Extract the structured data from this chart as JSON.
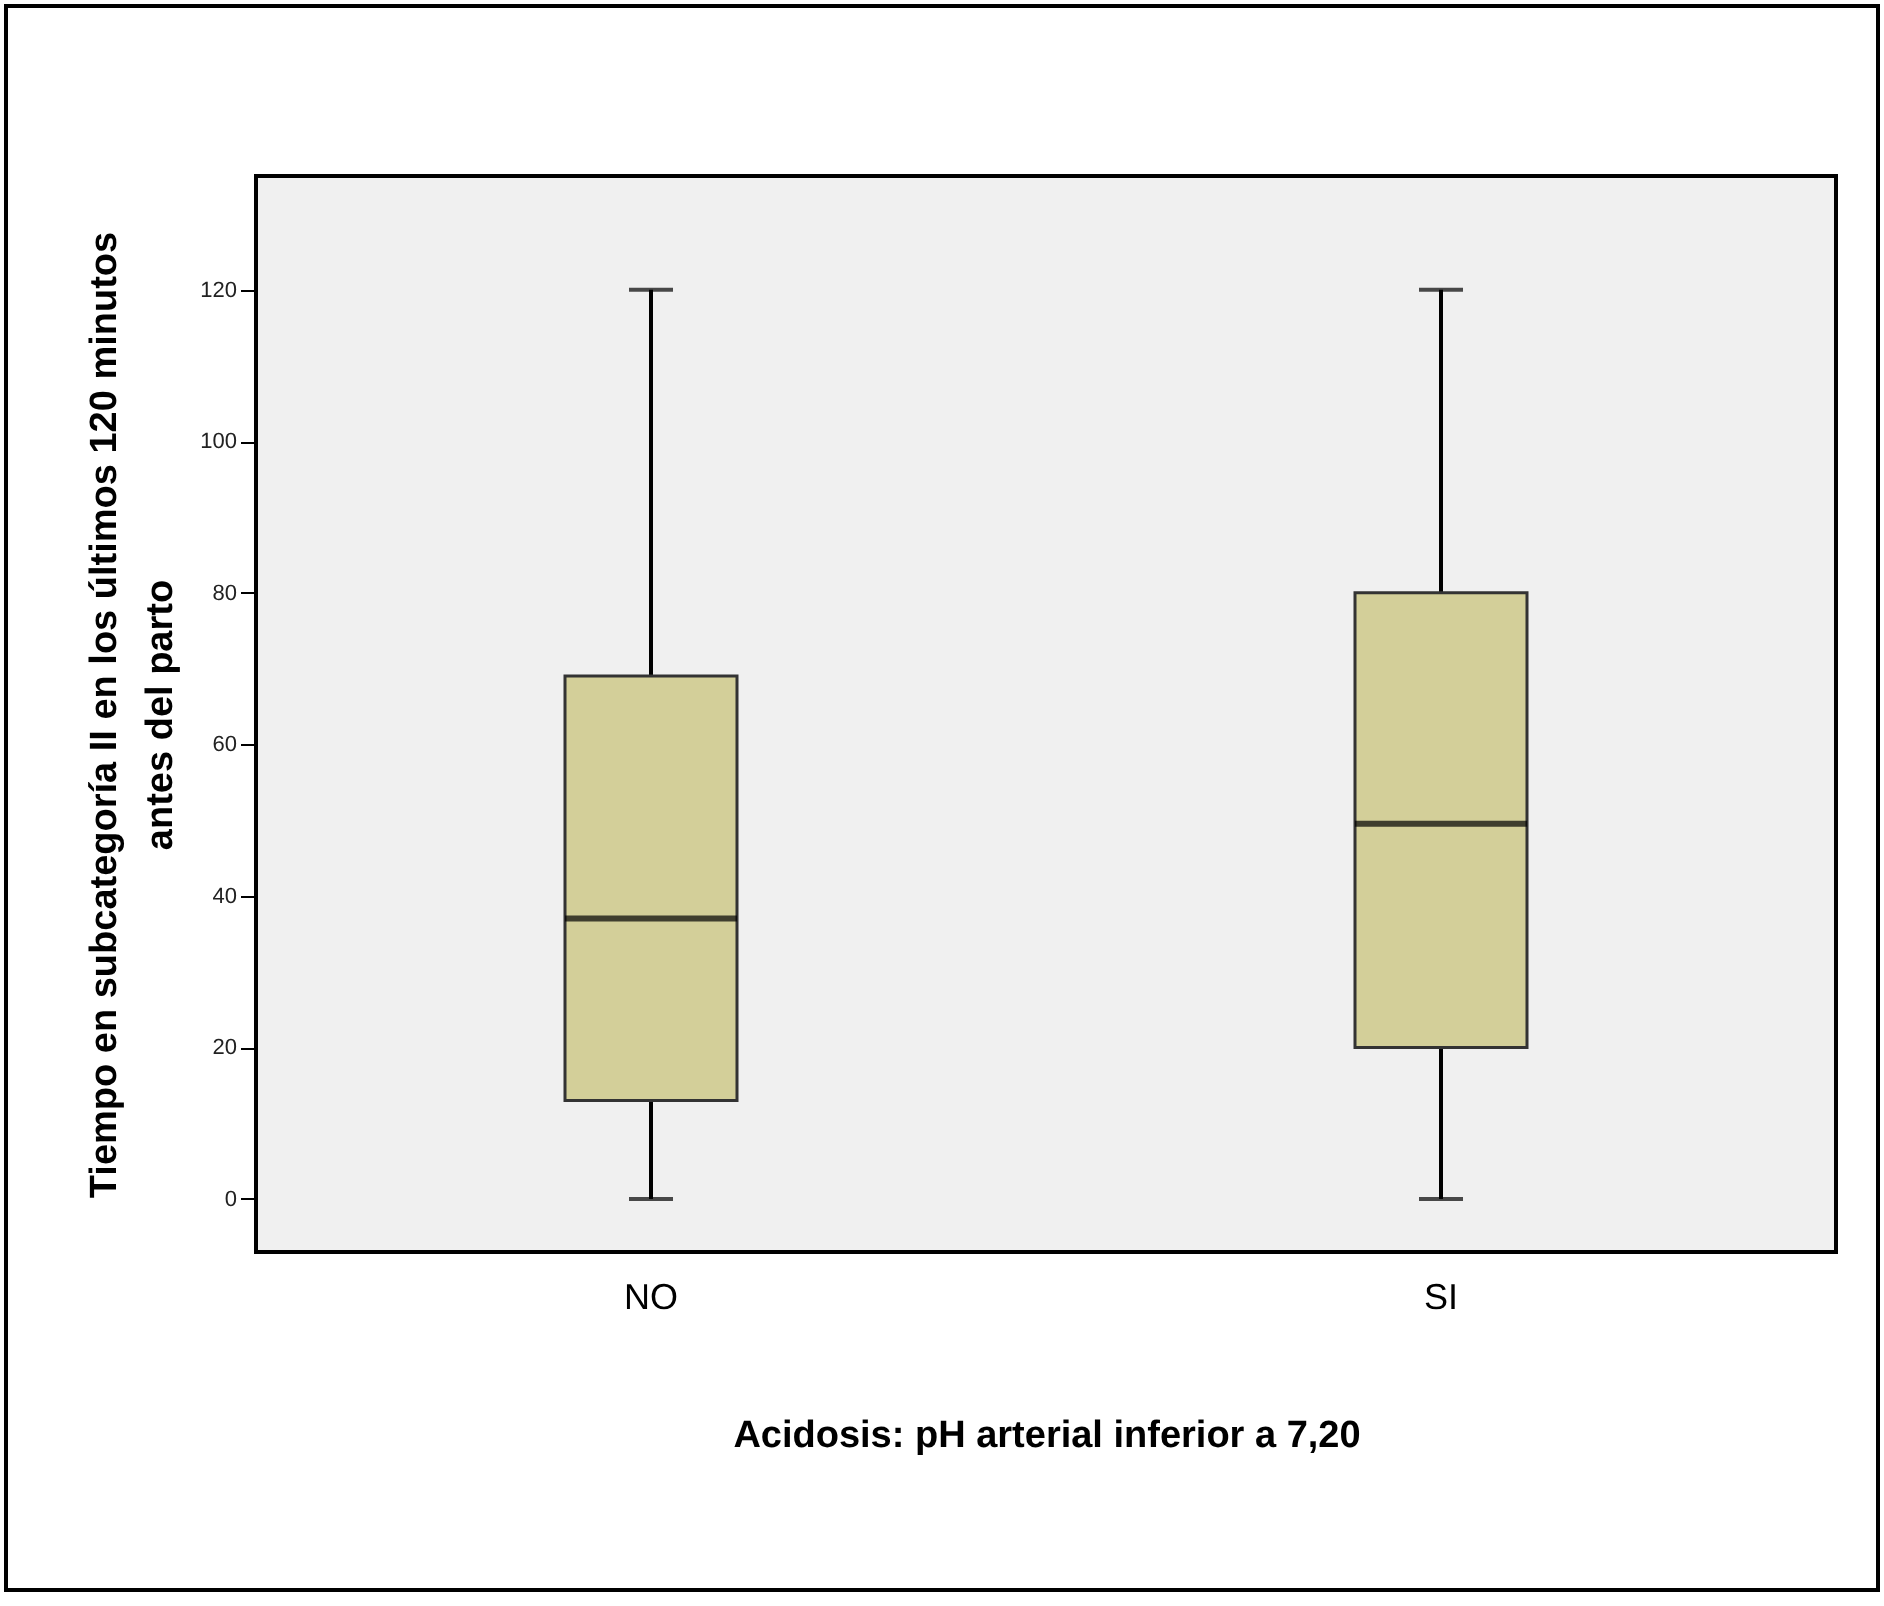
{
  "chart_data": {
    "type": "box",
    "xlabel": "Acidosis: pH arterial inferior a 7,20",
    "ylabel": "Tiempo en subcategoría II en los últimos 120 minutos\nantes del parto",
    "categories": [
      "NO",
      "SI"
    ],
    "boxes": [
      {
        "low": 0,
        "q1": 13,
        "median": 37,
        "q3": 69,
        "high": 120
      },
      {
        "low": 0,
        "q1": 20,
        "median": 49.5,
        "q3": 80,
        "high": 120
      }
    ],
    "color": "#d3cf99",
    "ylim": [
      -7,
      135
    ],
    "yticks": [
      0,
      20,
      40,
      60,
      80,
      100,
      120
    ]
  }
}
